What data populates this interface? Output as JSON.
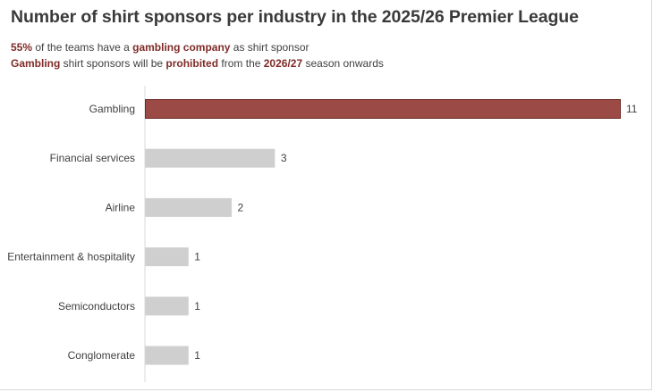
{
  "title": "Number of shirt sponsors per industry in the 2025/26 Premier League",
  "subtitle_line1": {
    "highlight1": "55%",
    "text1": " of the teams have a ",
    "highlight2": "gambling company",
    "text2": " as shirt sponsor"
  },
  "subtitle_line2": {
    "highlight1": "Gambling",
    "text1": " shirt sponsors will be ",
    "highlight2": "prohibited",
    "text2": " from the ",
    "highlight3": "2026/27",
    "text3": " season onwards"
  },
  "colors": {
    "highlight_bar": "#9b4a45",
    "highlight_border": "#6e2a26",
    "default_bar": "#d0cfcf",
    "accent_text": "#7f2b27",
    "axis": "#d9d9d9"
  },
  "chart_data": {
    "type": "bar",
    "orientation": "horizontal",
    "categories": [
      "Gambling",
      "Financial services",
      "Airline",
      "Entertainment & hospitality",
      "Semiconductors",
      "Conglomerate"
    ],
    "values": [
      11,
      3,
      2,
      1,
      1,
      1
    ],
    "highlighted": [
      "Gambling"
    ],
    "data_labels": true,
    "grid": false,
    "legend": "none",
    "xlim": [
      0,
      11
    ]
  }
}
